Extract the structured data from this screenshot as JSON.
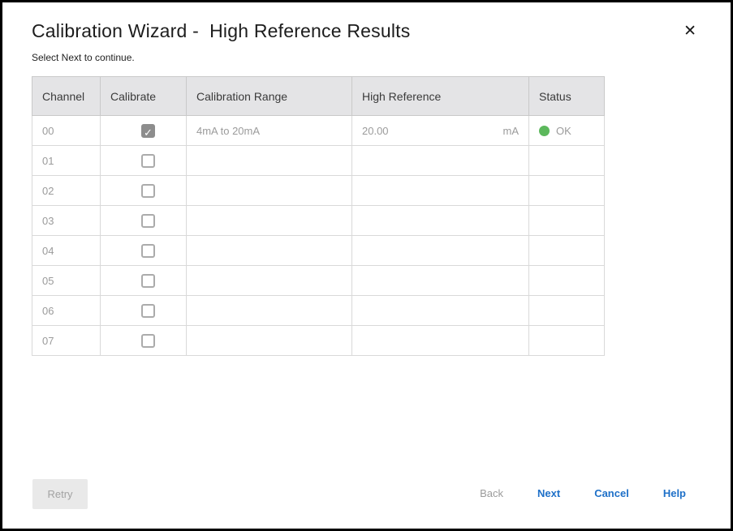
{
  "dialog": {
    "title": "Calibration Wizard -  High Reference Results",
    "close_glyph": "✕",
    "subtitle": "Select Next to continue."
  },
  "table": {
    "columns": [
      "Channel",
      "Calibrate",
      "Calibration Range",
      "High Reference",
      "Status"
    ],
    "rows": [
      {
        "channel": "00",
        "calibrate": true,
        "range": "4mA to 20mA",
        "high_reference": "20.00",
        "unit": "mA",
        "status": "OK"
      },
      {
        "channel": "01",
        "calibrate": false,
        "range": "",
        "high_reference": "",
        "unit": "",
        "status": ""
      },
      {
        "channel": "02",
        "calibrate": false,
        "range": "",
        "high_reference": "",
        "unit": "",
        "status": ""
      },
      {
        "channel": "03",
        "calibrate": false,
        "range": "",
        "high_reference": "",
        "unit": "",
        "status": ""
      },
      {
        "channel": "04",
        "calibrate": false,
        "range": "",
        "high_reference": "",
        "unit": "",
        "status": ""
      },
      {
        "channel": "05",
        "calibrate": false,
        "range": "",
        "high_reference": "",
        "unit": "",
        "status": ""
      },
      {
        "channel": "06",
        "calibrate": false,
        "range": "",
        "high_reference": "",
        "unit": "",
        "status": ""
      },
      {
        "channel": "07",
        "calibrate": false,
        "range": "",
        "high_reference": "",
        "unit": "",
        "status": ""
      }
    ]
  },
  "footer": {
    "retry_label": "Retry",
    "back_label": "Back",
    "next_label": "Next",
    "cancel_label": "Cancel",
    "help_label": "Help"
  },
  "colors": {
    "title_text": "#1d1d1d",
    "header_bg": "#e4e4e6",
    "header_text": "#3a3a3a",
    "muted_text": "#9b9b9b",
    "cell_border": "#d9d9d9",
    "outer_border": "#a9a9a9",
    "status_ok": "#5cb85c",
    "link_blue": "#1e70c8",
    "disabled_text": "#a3a3a3",
    "retry_bg": "#e9e9e9"
  }
}
